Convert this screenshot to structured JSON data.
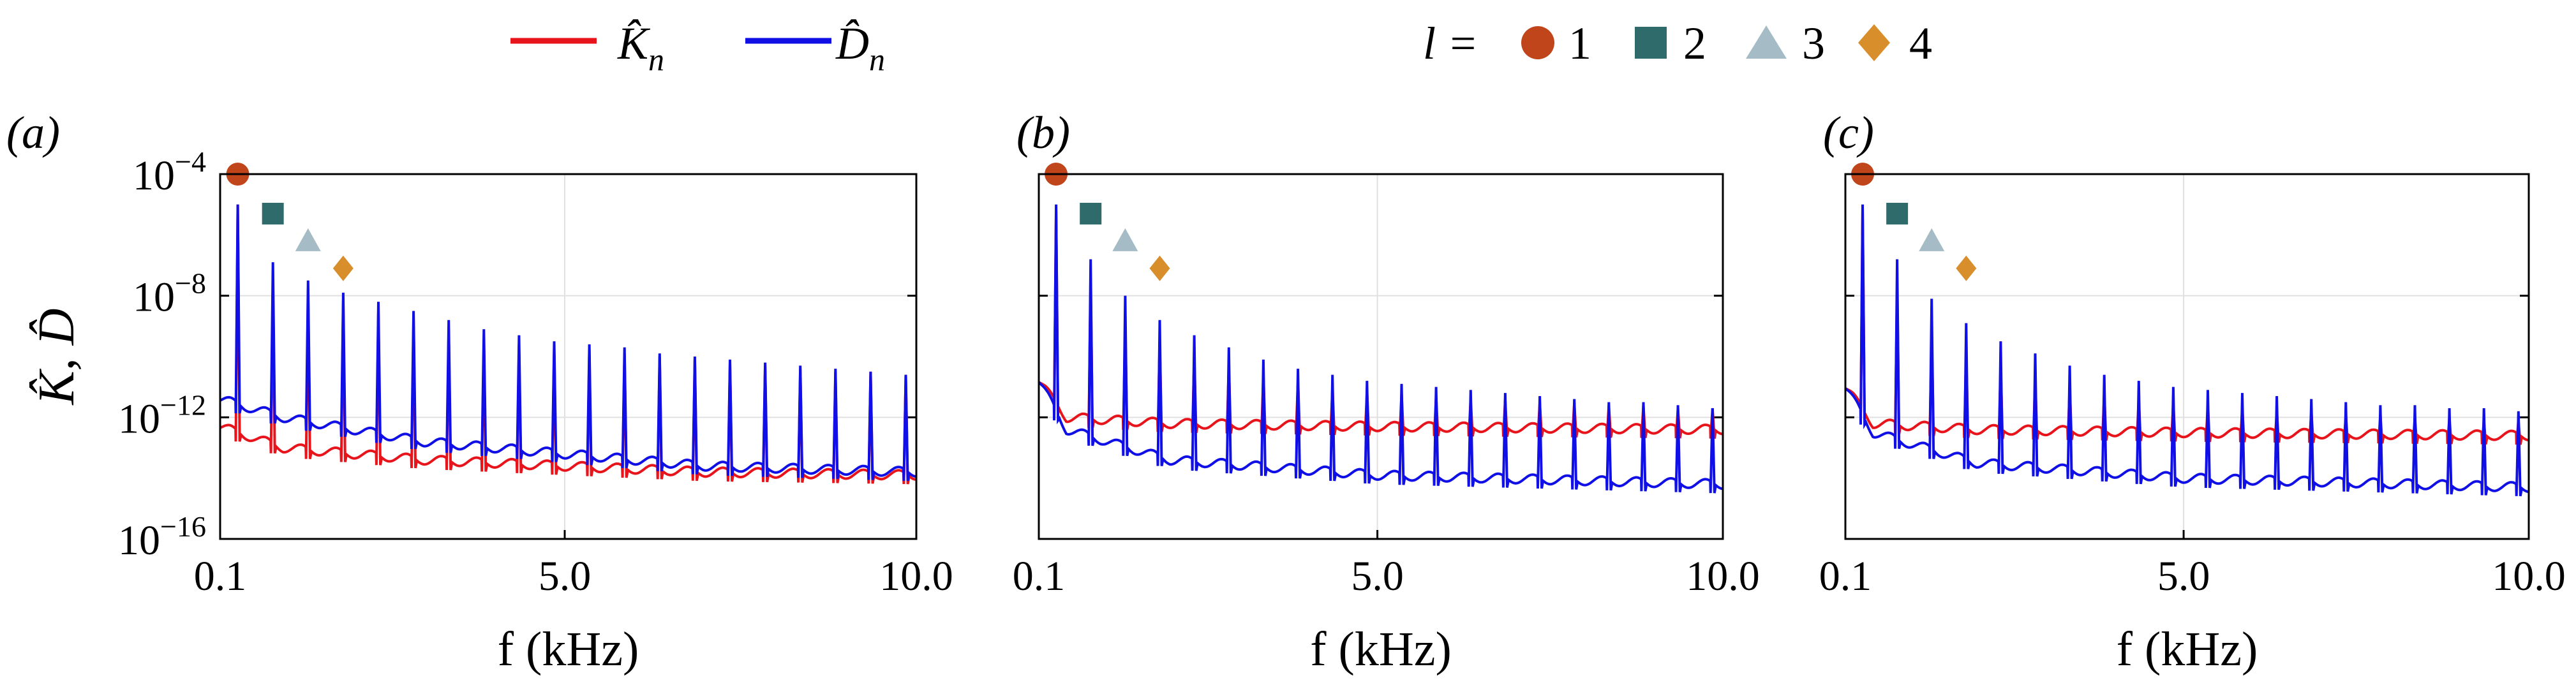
{
  "legend": {
    "series": [
      {
        "name": "K̂",
        "sub": "n",
        "color": "#e8141c"
      },
      {
        "name": "D̂",
        "sub": "n",
        "color": "#1010e6"
      }
    ],
    "l_label": "l =",
    "markers": [
      {
        "shape": "circle-icon",
        "label": "1",
        "color": "#c0451a"
      },
      {
        "shape": "square-icon",
        "label": "2",
        "color": "#2f6b6b"
      },
      {
        "shape": "triangle-icon",
        "label": "3",
        "color": "#a5bcc6"
      },
      {
        "shape": "diamond-icon",
        "label": "4",
        "color": "#d98e2c"
      }
    ]
  },
  "chart_data": [
    {
      "type": "line",
      "panel_label": "(a)",
      "xlabel": "f (kHz)",
      "ylabel": "K̂, D̂",
      "ylabel_shown": true,
      "xlim": [
        0.1,
        10.0
      ],
      "xticks": [
        {
          "v": 0.1,
          "t": "0.1"
        },
        {
          "v": 5.0,
          "t": "5.0"
        },
        {
          "v": 10.0,
          "t": "10.0"
        }
      ],
      "yscale": "log",
      "ylog_range": [
        -16,
        -4
      ],
      "yticks": [
        {
          "e": -4,
          "t": "10",
          "sup": "−4"
        },
        {
          "e": -8,
          "t": "10",
          "sup": "−8"
        },
        {
          "e": -12,
          "t": "10",
          "sup": "−12"
        },
        {
          "e": -16,
          "t": "10",
          "sup": "−16"
        }
      ],
      "yticklabels_shown": true,
      "grid": true,
      "peak_spacing_khz": 0.5,
      "peak_count": 20,
      "markers": [
        {
          "l": 1,
          "x": 0.1,
          "log10_y": -4.0
        },
        {
          "l": 2,
          "x": 0.6,
          "log10_y": -5.3
        },
        {
          "l": 3,
          "x": 1.1,
          "log10_y": -6.2
        },
        {
          "l": 4,
          "x": 1.6,
          "log10_y": -7.1
        }
      ],
      "series": [
        {
          "name": "K̂n",
          "color": "#e8141c",
          "peaks_log10": [
            -5.0,
            -7.8,
            -7.8,
            -8.2,
            -8.5,
            -8.8,
            -9.1,
            -9.4,
            -9.6,
            -9.7,
            -9.8,
            -9.9,
            -10.0,
            -10.1,
            -10.2,
            -10.3,
            -10.4,
            -10.5,
            -10.5,
            -10.6
          ],
          "baseline_log10": [
            [
              0.1,
              -12.3
            ],
            [
              1.0,
              -13.0
            ],
            [
              3.0,
              -13.4
            ],
            [
              5.0,
              -13.6
            ],
            [
              7.0,
              -13.8
            ],
            [
              10.0,
              -13.9
            ]
          ]
        },
        {
          "name": "D̂n",
          "color": "#1010e6",
          "peaks_log10": [
            -5.0,
            -6.9,
            -7.5,
            -7.9,
            -8.2,
            -8.5,
            -8.8,
            -9.1,
            -9.3,
            -9.5,
            -9.6,
            -9.7,
            -9.9,
            -10.0,
            -10.1,
            -10.2,
            -10.3,
            -10.4,
            -10.5,
            -10.6
          ],
          "baseline_log10": [
            [
              0.1,
              -11.4
            ],
            [
              1.0,
              -12.0
            ],
            [
              3.0,
              -12.8
            ],
            [
              5.0,
              -13.2
            ],
            [
              7.0,
              -13.6
            ],
            [
              10.0,
              -13.8
            ]
          ]
        }
      ]
    },
    {
      "type": "line",
      "panel_label": "(b)",
      "xlabel": "f (kHz)",
      "ylabel": "",
      "ylabel_shown": false,
      "xlim": [
        0.1,
        10.0
      ],
      "xticks": [
        {
          "v": 0.1,
          "t": "0.1"
        },
        {
          "v": 5.0,
          "t": "5.0"
        },
        {
          "v": 10.0,
          "t": "10.0"
        }
      ],
      "yscale": "log",
      "ylog_range": [
        -16,
        -4
      ],
      "yticks": [
        {
          "e": -4
        },
        {
          "e": -8
        },
        {
          "e": -12
        },
        {
          "e": -16
        }
      ],
      "yticklabels_shown": false,
      "grid": true,
      "peak_spacing_khz": 0.5,
      "peak_count": 20,
      "markers": [
        {
          "l": 1,
          "x": 0.1,
          "log10_y": -4.0
        },
        {
          "l": 2,
          "x": 0.6,
          "log10_y": -5.3
        },
        {
          "l": 3,
          "x": 1.1,
          "log10_y": -6.2
        },
        {
          "l": 4,
          "x": 1.6,
          "log10_y": -7.1
        }
      ],
      "series": [
        {
          "name": "K̂n",
          "color": "#e8141c",
          "peaks_log10": [
            -5.2,
            -7.5,
            -9.0,
            -9.5,
            -10.0,
            -10.3,
            -10.6,
            -10.8,
            -11.0,
            -11.1,
            -11.2,
            -11.3,
            -11.4,
            -11.4,
            -11.5,
            -11.5,
            -11.6,
            -11.6,
            -11.7,
            -11.7
          ],
          "baseline_log10": [
            [
              0.1,
              -10.8
            ],
            [
              0.5,
              -12.0
            ],
            [
              2.0,
              -12.2
            ],
            [
              5.0,
              -12.3
            ],
            [
              10.0,
              -12.4
            ]
          ]
        },
        {
          "name": "D̂n",
          "color": "#1010e6",
          "peaks_log10": [
            -5.0,
            -6.8,
            -8.0,
            -8.8,
            -9.3,
            -9.7,
            -10.1,
            -10.4,
            -10.6,
            -10.8,
            -10.9,
            -11.0,
            -11.1,
            -11.2,
            -11.3,
            -11.4,
            -11.5,
            -11.5,
            -11.6,
            -11.7
          ],
          "baseline_log10": [
            [
              0.1,
              -10.8
            ],
            [
              0.5,
              -12.4
            ],
            [
              2.0,
              -13.4
            ],
            [
              5.0,
              -13.9
            ],
            [
              10.0,
              -14.2
            ]
          ]
        }
      ]
    },
    {
      "type": "line",
      "panel_label": "(c)",
      "xlabel": "f (kHz)",
      "ylabel": "",
      "ylabel_shown": false,
      "xlim": [
        0.1,
        10.0
      ],
      "xticks": [
        {
          "v": 0.1,
          "t": "0.1"
        },
        {
          "v": 5.0,
          "t": "5.0"
        },
        {
          "v": 10.0,
          "t": "10.0"
        }
      ],
      "yscale": "log",
      "ylog_range": [
        -16,
        -4
      ],
      "yticks": [
        {
          "e": -4
        },
        {
          "e": -8
        },
        {
          "e": -12
        },
        {
          "e": -16
        }
      ],
      "yticklabels_shown": false,
      "grid": true,
      "peak_spacing_khz": 0.5,
      "peak_count": 20,
      "markers": [
        {
          "l": 1,
          "x": 0.1,
          "log10_y": -4.0
        },
        {
          "l": 2,
          "x": 0.6,
          "log10_y": -5.3
        },
        {
          "l": 3,
          "x": 1.1,
          "log10_y": -6.2
        },
        {
          "l": 4,
          "x": 1.6,
          "log10_y": -7.1
        }
      ],
      "series": [
        {
          "name": "K̂n",
          "color": "#e8141c",
          "peaks_log10": [
            -5.2,
            -7.6,
            -9.2,
            -9.8,
            -10.3,
            -10.7,
            -11.0,
            -11.2,
            -11.4,
            -11.5,
            -11.6,
            -11.7,
            -11.8,
            -11.8,
            -11.9,
            -11.9,
            -12.0,
            -12.0,
            -12.1,
            -12.1
          ],
          "baseline_log10": [
            [
              0.1,
              -11.0
            ],
            [
              0.5,
              -12.2
            ],
            [
              2.0,
              -12.4
            ],
            [
              5.0,
              -12.5
            ],
            [
              10.0,
              -12.6
            ]
          ]
        },
        {
          "name": "D̂n",
          "color": "#1010e6",
          "peaks_log10": [
            -5.0,
            -6.8,
            -8.1,
            -8.9,
            -9.5,
            -9.9,
            -10.3,
            -10.6,
            -10.8,
            -11.0,
            -11.1,
            -11.2,
            -11.3,
            -11.4,
            -11.5,
            -11.6,
            -11.6,
            -11.7,
            -11.7,
            -11.8
          ],
          "baseline_log10": [
            [
              0.1,
              -11.0
            ],
            [
              0.5,
              -12.5
            ],
            [
              2.0,
              -13.5
            ],
            [
              5.0,
              -14.0
            ],
            [
              10.0,
              -14.3
            ]
          ]
        }
      ]
    }
  ]
}
